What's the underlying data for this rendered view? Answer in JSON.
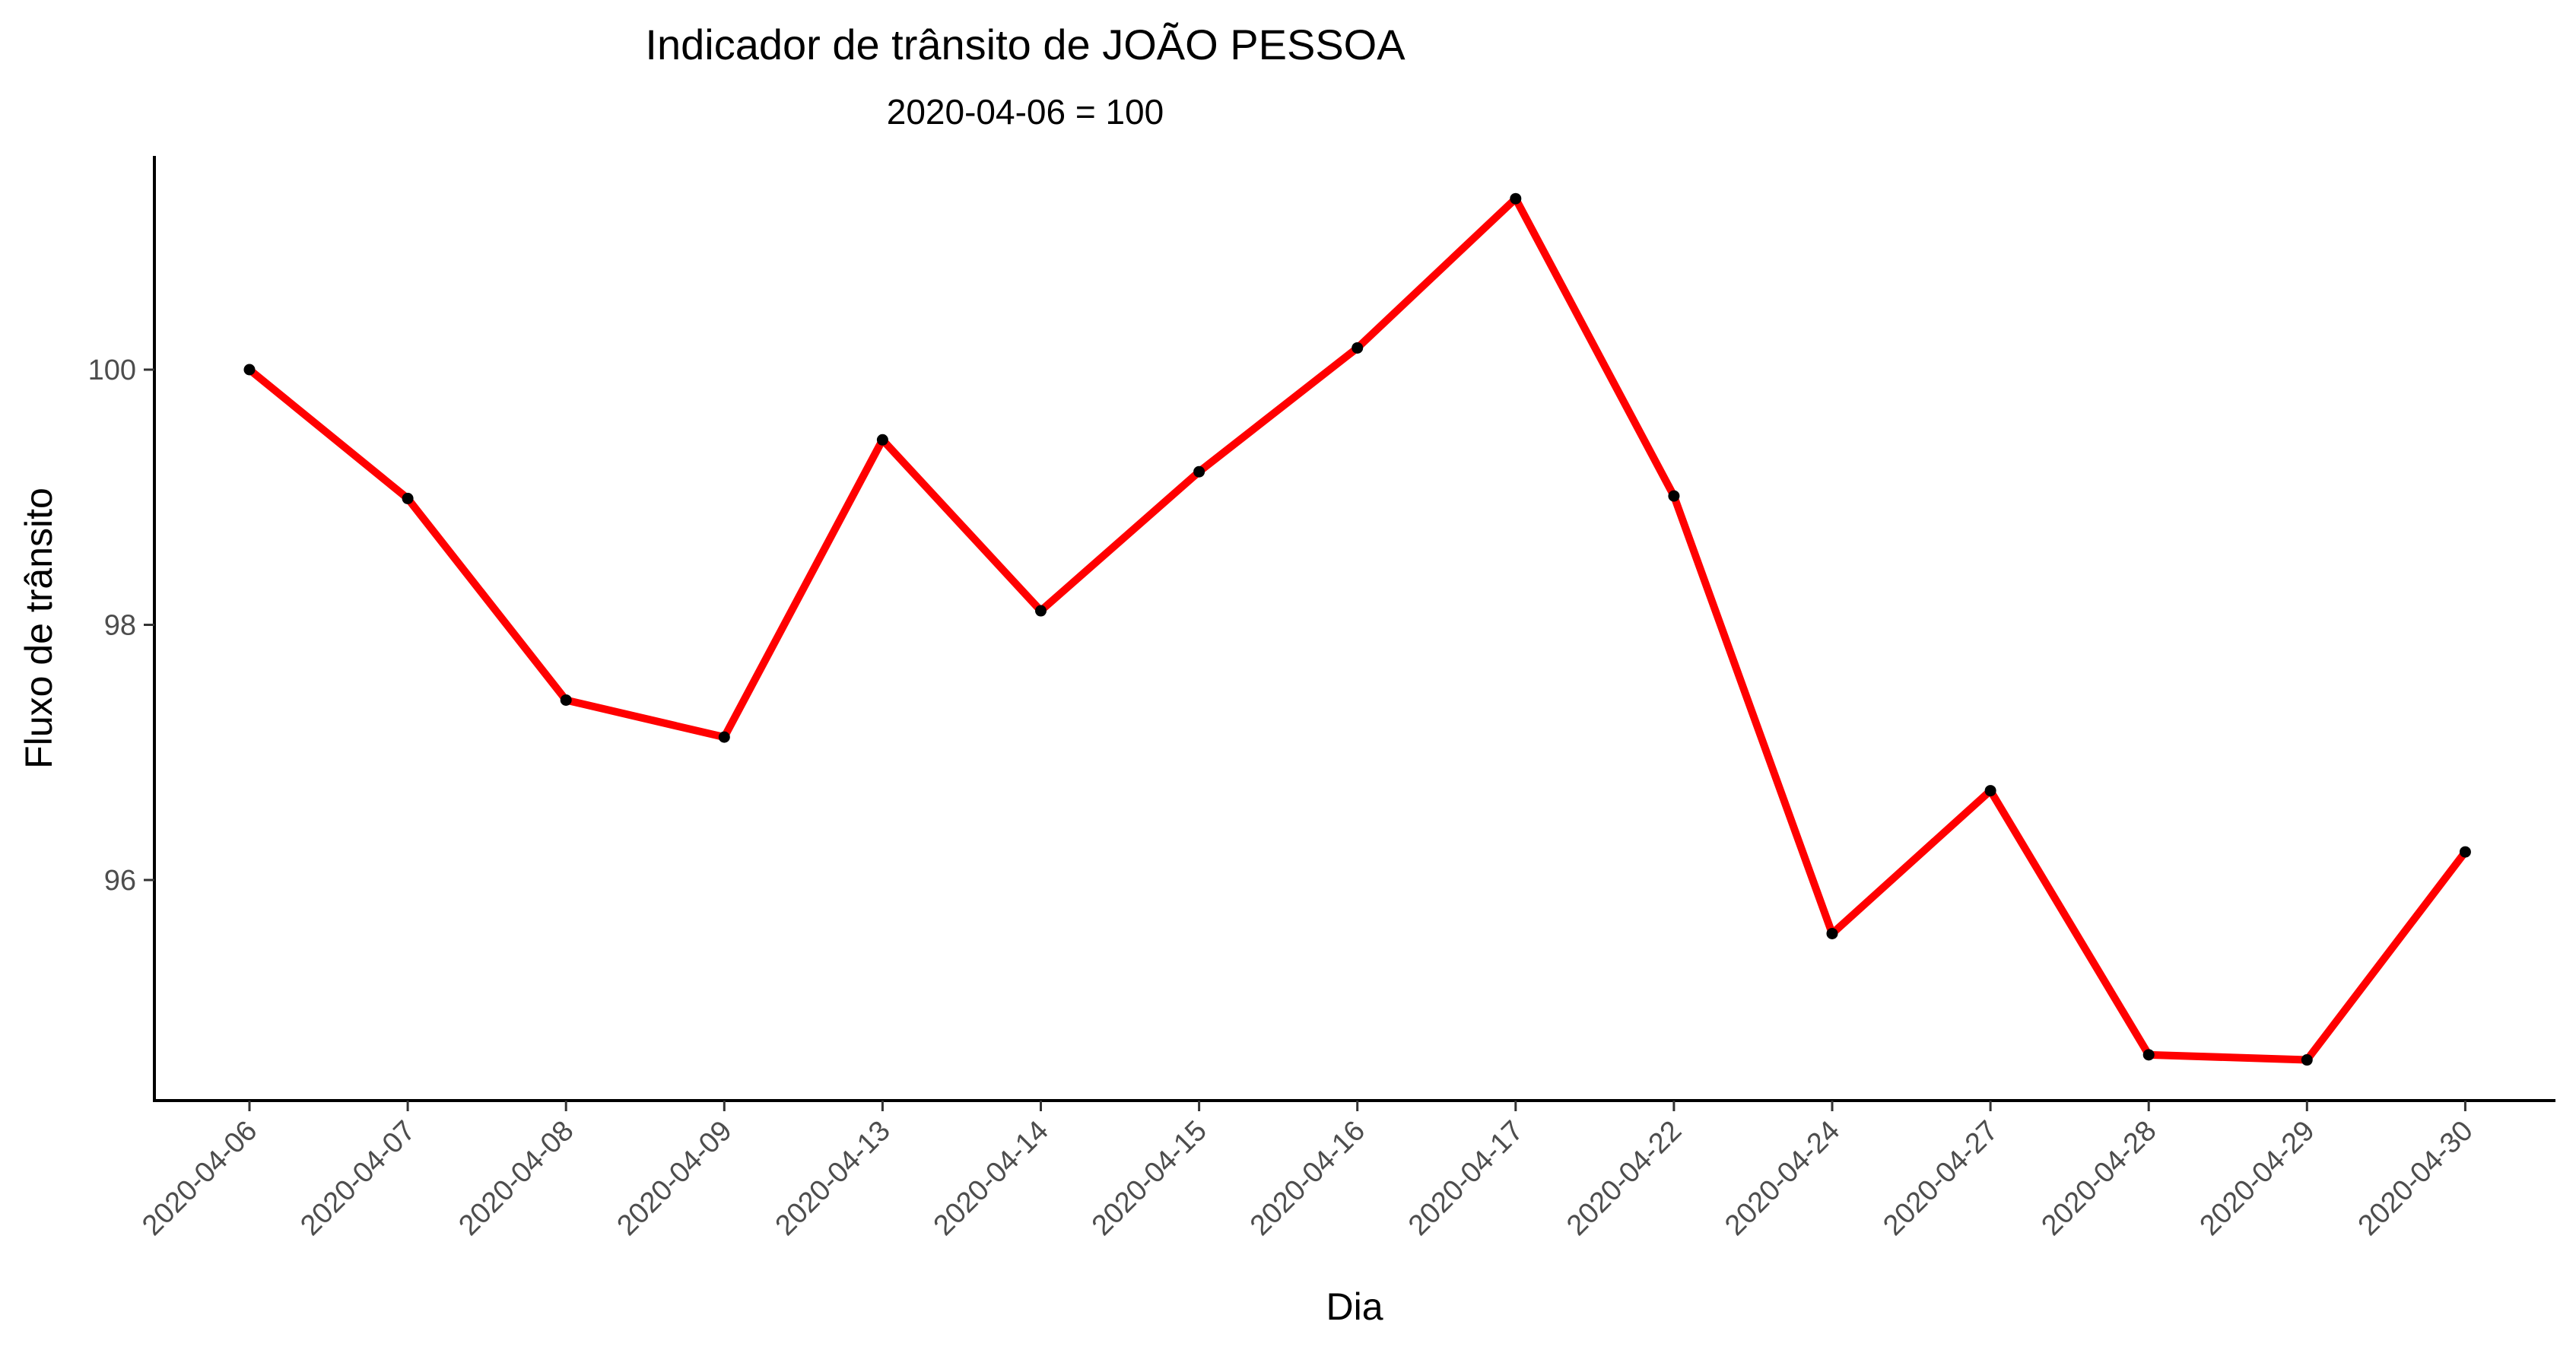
{
  "chart_data": {
    "type": "line",
    "title": "Indicador de trânsito de JOÃO PESSOA",
    "subtitle": "2020-04-06 = 100",
    "xlabel": "Dia",
    "ylabel": "Fluxo de trânsito",
    "categories": [
      "2020-04-06",
      "2020-04-07",
      "2020-04-08",
      "2020-04-09",
      "2020-04-13",
      "2020-04-14",
      "2020-04-15",
      "2020-04-16",
      "2020-04-17",
      "2020-04-22",
      "2020-04-24",
      "2020-04-27",
      "2020-04-28",
      "2020-04-29",
      "2020-04-30"
    ],
    "series": [
      {
        "values": [
          100.0,
          98.99,
          97.41,
          97.12,
          99.45,
          98.11,
          99.2,
          100.17,
          101.34,
          99.01,
          95.58,
          96.7,
          94.63,
          94.59,
          96.22
        ]
      }
    ],
    "yticks": [
      96,
      98,
      100
    ],
    "ylim": [
      94.2,
      101.7
    ],
    "grid": false,
    "legend": "none",
    "colors": {
      "line": "#ff0000",
      "point": "#000000",
      "axis": "#000000",
      "tick_label": "#4d4d4d"
    }
  }
}
